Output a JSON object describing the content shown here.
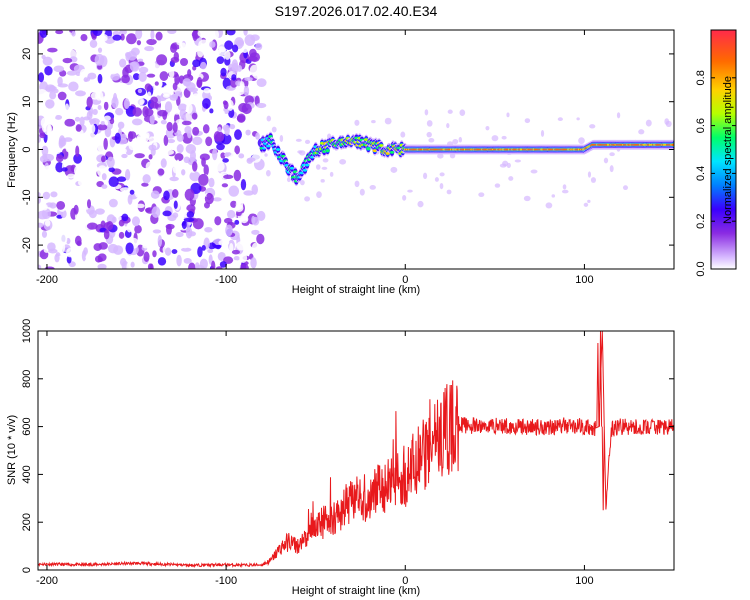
{
  "title": "S197.2026.017.02.40.E34",
  "chart_data": [
    {
      "type": "heatmap",
      "name": "spectrogram",
      "xlabel": "Height of straight line (km)",
      "ylabel": "Frequency (Hz)",
      "xlim": [
        -205,
        150
      ],
      "ylim": [
        -25,
        25
      ],
      "xticks": [
        -200,
        -100,
        0,
        100
      ],
      "yticks": [
        20,
        10,
        0,
        -10,
        -20
      ],
      "colorbar": {
        "label": "Normalized spectral amplitude",
        "range": [
          0,
          1
        ],
        "ticks": [
          "0.0",
          "0.2",
          "0.4",
          "0.6",
          "0.8"
        ],
        "tick_values": [
          0.0,
          0.2,
          0.4,
          0.6,
          0.8
        ],
        "colors": [
          "#ffffff",
          "#d6b8ff",
          "#8a2be2",
          "#3a00ff",
          "#0080ff",
          "#00e5ff",
          "#00ff6a",
          "#b6ff00",
          "#ffd000",
          "#ff6a00",
          "#ff2a4a"
        ]
      },
      "features": {
        "noise_region_x": [
          -205,
          -80
        ],
        "signal_track": [
          {
            "x": -80,
            "y": 1
          },
          {
            "x": -75,
            "y": 2
          },
          {
            "x": -70,
            "y": -1
          },
          {
            "x": -65,
            "y": -4
          },
          {
            "x": -60,
            "y": -6
          },
          {
            "x": -55,
            "y": -3
          },
          {
            "x": -50,
            "y": 0
          },
          {
            "x": -40,
            "y": 1
          },
          {
            "x": -30,
            "y": 2
          },
          {
            "x": -20,
            "y": 1
          },
          {
            "x": -10,
            "y": 0
          },
          {
            "x": 0,
            "y": 0
          },
          {
            "x": 20,
            "y": 0
          },
          {
            "x": 60,
            "y": 0
          },
          {
            "x": 100,
            "y": 0
          },
          {
            "x": 105,
            "y": 1
          },
          {
            "x": 120,
            "y": 1
          },
          {
            "x": 150,
            "y": 1
          }
        ]
      }
    },
    {
      "type": "line",
      "name": "snr",
      "xlabel": "Height of straight line (km)",
      "ylabel": "SNR (10 * v/v)",
      "xlim": [
        -205,
        150
      ],
      "ylim": [
        0,
        1000
      ],
      "xticks": [
        -200,
        -100,
        0,
        100
      ],
      "yticks": [
        0,
        200,
        400,
        600,
        800,
        1000
      ],
      "color": "#e8191c",
      "series": [
        {
          "name": "SNR",
          "x": [
            -205,
            -180,
            -150,
            -120,
            -100,
            -90,
            -80,
            -75,
            -70,
            -65,
            -60,
            -55,
            -50,
            -45,
            -40,
            -35,
            -30,
            -25,
            -20,
            -15,
            -10,
            -5,
            0,
            5,
            10,
            15,
            20,
            25,
            30,
            40,
            50,
            60,
            70,
            80,
            90,
            100,
            105,
            108,
            110,
            112,
            115,
            120,
            130,
            140,
            150
          ],
          "values": [
            25,
            22,
            28,
            20,
            22,
            20,
            22,
            40,
            90,
            120,
            100,
            130,
            190,
            200,
            220,
            250,
            280,
            300,
            310,
            340,
            360,
            390,
            400,
            430,
            470,
            520,
            560,
            590,
            610,
            600,
            605,
            600,
            598,
            600,
            605,
            600,
            590,
            600,
            1000,
            250,
            590,
            600,
            595,
            600,
            595
          ]
        }
      ],
      "spikes": [
        {
          "x": 107.5,
          "value": 950
        },
        {
          "x": 109,
          "value": 1000
        },
        {
          "x": 110.5,
          "value": 250
        }
      ]
    }
  ]
}
